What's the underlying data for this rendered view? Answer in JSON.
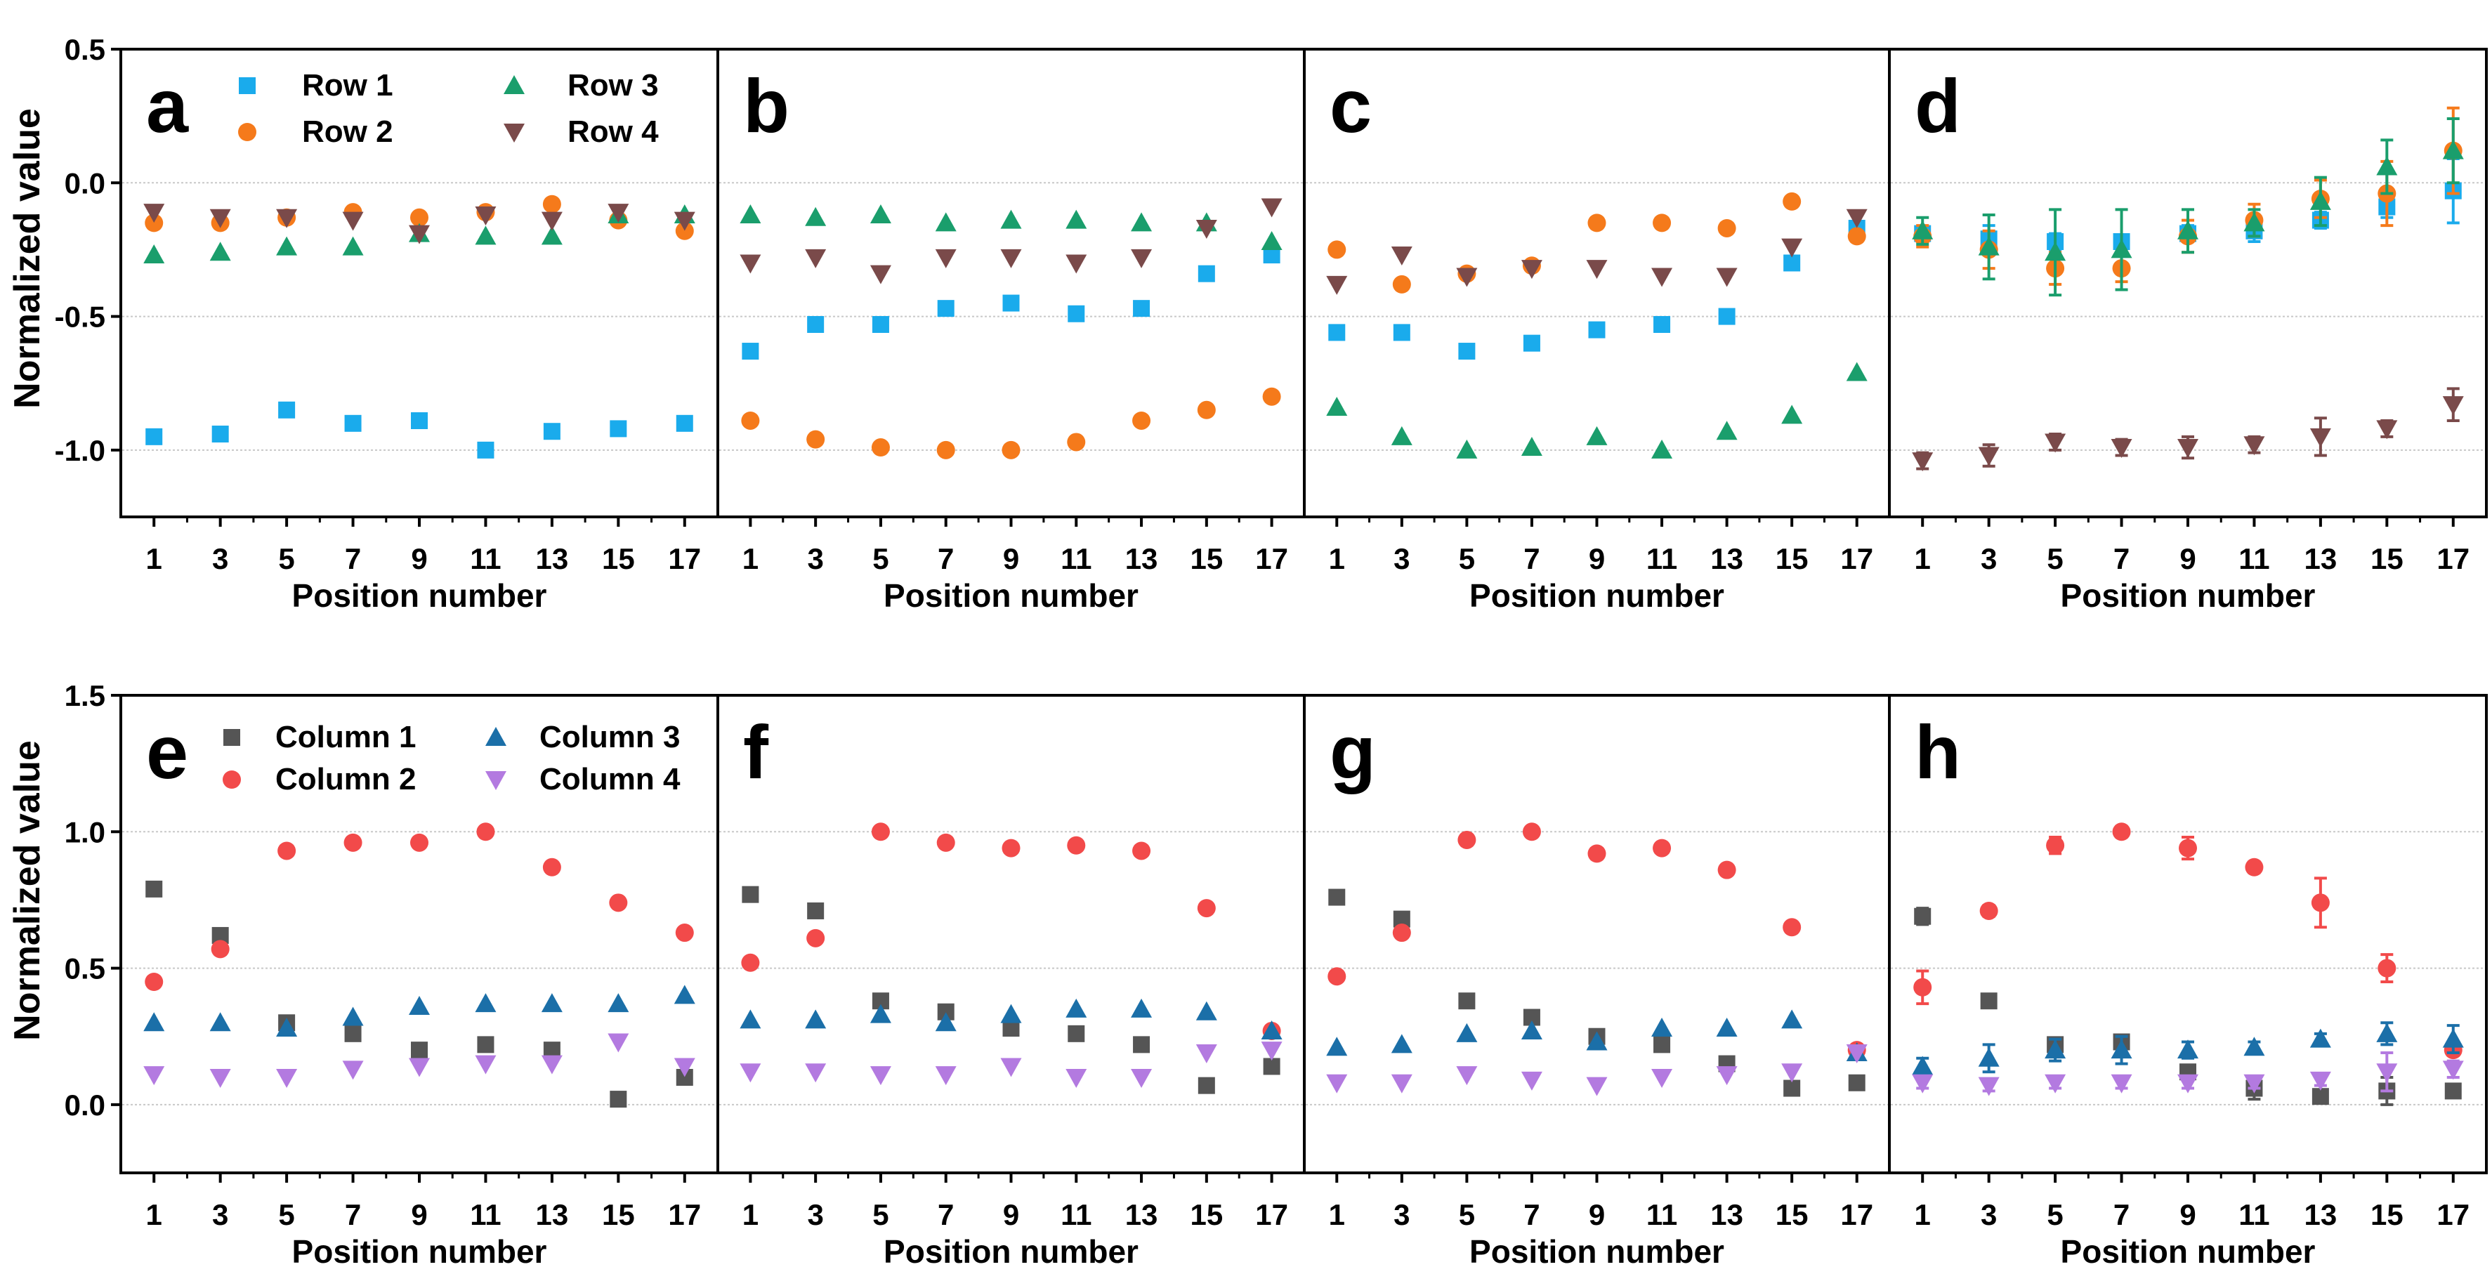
{
  "figure": {
    "rows": [
      {
        "ylabel": "Normalized value",
        "ylim": [
          -1.25,
          0.5
        ],
        "yticks": [
          -1.0,
          -0.5,
          0.0,
          0.5
        ],
        "ytick_labels": [
          "-1.0",
          "-0.5",
          "0.0",
          "0.5"
        ],
        "gridlines": [
          -1.0,
          -0.5,
          0.0
        ],
        "legend": [
          {
            "name": "Row 1",
            "color": "#1aabec",
            "marker": "square"
          },
          {
            "name": "Row 2",
            "color": "#f57a1b",
            "marker": "circle"
          },
          {
            "name": "Row 3",
            "color": "#1a9e6c",
            "marker": "triangle-up"
          },
          {
            "name": "Row 4",
            "color": "#7a4a4a",
            "marker": "triangle-down"
          }
        ]
      },
      {
        "ylabel": "Normalized value",
        "ylim": [
          -0.25,
          1.5
        ],
        "yticks": [
          0.0,
          0.5,
          1.0,
          1.5
        ],
        "ytick_labels": [
          "0.0",
          "0.5",
          "1.0",
          "1.5"
        ],
        "gridlines": [
          0.0,
          0.5,
          1.0
        ],
        "legend": [
          {
            "name": "Column 1",
            "color": "#555555",
            "marker": "square"
          },
          {
            "name": "Column 2",
            "color": "#f24a4a",
            "marker": "circle"
          },
          {
            "name": "Column 3",
            "color": "#1b6fa8",
            "marker": "triangle-up"
          },
          {
            "name": "Column 4",
            "color": "#b37ae0",
            "marker": "triangle-down"
          }
        ]
      }
    ],
    "xticks": [
      1,
      3,
      5,
      7,
      9,
      11,
      13,
      15,
      17
    ],
    "xtick_labels": [
      "1",
      "3",
      "5",
      "7",
      "9",
      "11",
      "13",
      "15",
      "17"
    ],
    "xlabel": "Position number"
  },
  "chart_data": [
    {
      "panel": "a",
      "type": "scatter",
      "xlabel": "Position number",
      "ylabel": "Normalized value",
      "ylim": [
        -1.25,
        0.5
      ],
      "legend_position": "top",
      "x": [
        1,
        3,
        5,
        7,
        9,
        11,
        13,
        15,
        17
      ],
      "series": [
        {
          "name": "Row 1",
          "values": [
            -0.95,
            -0.94,
            -0.85,
            -0.9,
            -0.89,
            -1.0,
            -0.93,
            -0.92,
            -0.9
          ]
        },
        {
          "name": "Row 2",
          "values": [
            -0.15,
            -0.15,
            -0.13,
            -0.11,
            -0.13,
            -0.11,
            -0.08,
            -0.14,
            -0.18
          ]
        },
        {
          "name": "Row 3",
          "values": [
            -0.27,
            -0.26,
            -0.24,
            -0.24,
            -0.19,
            -0.2,
            -0.2,
            -0.12,
            -0.12
          ]
        },
        {
          "name": "Row 4",
          "values": [
            -0.11,
            -0.13,
            -0.13,
            -0.14,
            -0.19,
            -0.12,
            -0.14,
            -0.11,
            -0.14
          ]
        }
      ]
    },
    {
      "panel": "b",
      "type": "scatter",
      "xlabel": "Position number",
      "ylim": [
        -1.25,
        0.5
      ],
      "x": [
        1,
        3,
        5,
        7,
        9,
        11,
        13,
        15,
        17
      ],
      "series": [
        {
          "name": "Row 1",
          "values": [
            -0.63,
            -0.53,
            -0.53,
            -0.47,
            -0.45,
            -0.49,
            -0.47,
            -0.34,
            -0.27
          ]
        },
        {
          "name": "Row 2",
          "values": [
            -0.89,
            -0.96,
            -0.99,
            -1.0,
            -1.0,
            -0.97,
            -0.89,
            -0.85,
            -0.8
          ]
        },
        {
          "name": "Row 3",
          "values": [
            -0.12,
            -0.13,
            -0.12,
            -0.15,
            -0.14,
            -0.14,
            -0.15,
            -0.15,
            -0.22
          ]
        },
        {
          "name": "Row 4",
          "values": [
            -0.3,
            -0.28,
            -0.34,
            -0.28,
            -0.28,
            -0.3,
            -0.28,
            -0.17,
            -0.09
          ]
        }
      ]
    },
    {
      "panel": "c",
      "type": "scatter",
      "xlabel": "Position number",
      "ylim": [
        -1.25,
        0.5
      ],
      "x": [
        1,
        3,
        5,
        7,
        9,
        11,
        13,
        15,
        17
      ],
      "series": [
        {
          "name": "Row 1",
          "values": [
            -0.56,
            -0.56,
            -0.63,
            -0.6,
            -0.55,
            -0.53,
            -0.5,
            -0.3,
            -0.17
          ]
        },
        {
          "name": "Row 2",
          "values": [
            -0.25,
            -0.38,
            -0.34,
            -0.31,
            -0.15,
            -0.15,
            -0.17,
            -0.07,
            -0.2
          ]
        },
        {
          "name": "Row 3",
          "values": [
            -0.84,
            -0.95,
            -1.0,
            -0.99,
            -0.95,
            -1.0,
            -0.93,
            -0.87,
            -0.71
          ]
        },
        {
          "name": "Row 4",
          "values": [
            -0.38,
            -0.27,
            -0.35,
            -0.32,
            -0.32,
            -0.35,
            -0.35,
            -0.24,
            -0.13
          ]
        }
      ]
    },
    {
      "panel": "d",
      "type": "scatter",
      "xlabel": "Position number",
      "ylim": [
        -1.25,
        0.5
      ],
      "x": [
        1,
        3,
        5,
        7,
        9,
        11,
        13,
        15,
        17
      ],
      "series": [
        {
          "name": "Row 1",
          "values": [
            -0.19,
            -0.21,
            -0.22,
            -0.22,
            -0.19,
            -0.18,
            -0.14,
            -0.09,
            -0.03
          ],
          "errors": [
            0.02,
            0.05,
            0.03,
            0.02,
            0.03,
            0.04,
            0.03,
            0.04,
            0.12
          ]
        },
        {
          "name": "Row 2",
          "values": [
            -0.2,
            -0.25,
            -0.32,
            -0.32,
            -0.2,
            -0.14,
            -0.06,
            -0.04,
            0.12
          ],
          "errors": [
            0.04,
            0.07,
            0.06,
            0.05,
            0.06,
            0.06,
            0.07,
            0.12,
            0.16
          ]
        },
        {
          "name": "Row 3",
          "values": [
            -0.18,
            -0.24,
            -0.26,
            -0.25,
            -0.18,
            -0.15,
            -0.07,
            0.06,
            0.12
          ],
          "errors": [
            0.05,
            0.12,
            0.16,
            0.15,
            0.08,
            0.05,
            0.09,
            0.1,
            0.12
          ]
        },
        {
          "name": "Row 4",
          "values": [
            -1.04,
            -1.02,
            -0.97,
            -0.99,
            -0.99,
            -0.98,
            -0.95,
            -0.92,
            -0.83
          ],
          "errors": [
            0.03,
            0.04,
            0.03,
            0.03,
            0.04,
            0.03,
            0.07,
            0.03,
            0.06
          ]
        }
      ]
    },
    {
      "panel": "e",
      "type": "scatter",
      "xlabel": "Position number",
      "ylabel": "Normalized value",
      "ylim": [
        -0.25,
        1.5
      ],
      "legend_position": "top",
      "x": [
        1,
        3,
        5,
        7,
        9,
        11,
        13,
        15,
        17
      ],
      "series": [
        {
          "name": "Column 1",
          "values": [
            0.79,
            0.62,
            0.3,
            0.26,
            0.2,
            0.22,
            0.2,
            0.02,
            0.1
          ]
        },
        {
          "name": "Column 2",
          "values": [
            0.45,
            0.57,
            0.93,
            0.96,
            0.96,
            1.0,
            0.87,
            0.74,
            0.63
          ]
        },
        {
          "name": "Column 3",
          "values": [
            0.3,
            0.3,
            0.28,
            0.32,
            0.36,
            0.37,
            0.37,
            0.37,
            0.4
          ]
        },
        {
          "name": "Column 4",
          "values": [
            0.11,
            0.1,
            0.1,
            0.13,
            0.14,
            0.15,
            0.15,
            0.23,
            0.14
          ]
        }
      ]
    },
    {
      "panel": "f",
      "type": "scatter",
      "xlabel": "Position number",
      "ylim": [
        -0.25,
        1.5
      ],
      "x": [
        1,
        3,
        5,
        7,
        9,
        11,
        13,
        15,
        17
      ],
      "series": [
        {
          "name": "Column 1",
          "values": [
            0.77,
            0.71,
            0.38,
            0.34,
            0.28,
            0.26,
            0.22,
            0.07,
            0.14
          ]
        },
        {
          "name": "Column 2",
          "values": [
            0.52,
            0.61,
            1.0,
            0.96,
            0.94,
            0.95,
            0.93,
            0.72,
            0.27
          ]
        },
        {
          "name": "Column 3",
          "values": [
            0.31,
            0.31,
            0.33,
            0.3,
            0.33,
            0.35,
            0.35,
            0.34,
            0.27
          ]
        },
        {
          "name": "Column 4",
          "values": [
            0.12,
            0.12,
            0.11,
            0.11,
            0.14,
            0.1,
            0.1,
            0.19,
            0.2
          ]
        }
      ]
    },
    {
      "panel": "g",
      "type": "scatter",
      "xlabel": "Position number",
      "ylim": [
        -0.25,
        1.5
      ],
      "x": [
        1,
        3,
        5,
        7,
        9,
        11,
        13,
        15,
        17
      ],
      "series": [
        {
          "name": "Column 1",
          "values": [
            0.76,
            0.68,
            0.38,
            0.32,
            0.25,
            0.22,
            0.15,
            0.06,
            0.08
          ]
        },
        {
          "name": "Column 2",
          "values": [
            0.47,
            0.63,
            0.97,
            1.0,
            0.92,
            0.94,
            0.86,
            0.65,
            0.2
          ]
        },
        {
          "name": "Column 3",
          "values": [
            0.21,
            0.22,
            0.26,
            0.27,
            0.23,
            0.28,
            0.28,
            0.31,
            0.19
          ]
        },
        {
          "name": "Column 4",
          "values": [
            0.08,
            0.08,
            0.11,
            0.09,
            0.07,
            0.1,
            0.11,
            0.12,
            0.19
          ]
        }
      ]
    },
    {
      "panel": "h",
      "type": "scatter",
      "xlabel": "Position number",
      "ylim": [
        -0.25,
        1.5
      ],
      "x": [
        1,
        3,
        5,
        7,
        9,
        11,
        13,
        15,
        17
      ],
      "series": [
        {
          "name": "Column 1",
          "values": [
            0.69,
            0.38,
            0.22,
            0.23,
            0.12,
            0.06,
            0.03,
            0.05,
            0.05
          ],
          "errors": [
            0.03,
            0.02,
            0.02,
            0.02,
            0.02,
            0.04,
            0.02,
            0.05,
            0.02
          ]
        },
        {
          "name": "Column 2",
          "values": [
            0.43,
            0.71,
            0.95,
            1.0,
            0.94,
            0.87,
            0.74,
            0.5,
            0.2
          ],
          "errors": [
            0.06,
            0.02,
            0.03,
            0.02,
            0.04,
            0.02,
            0.09,
            0.05,
            0.02
          ]
        },
        {
          "name": "Column 3",
          "values": [
            0.14,
            0.17,
            0.2,
            0.2,
            0.2,
            0.21,
            0.24,
            0.26,
            0.24
          ],
          "errors": [
            0.03,
            0.05,
            0.04,
            0.05,
            0.03,
            0.02,
            0.02,
            0.04,
            0.05
          ]
        },
        {
          "name": "Column 4",
          "values": [
            0.08,
            0.07,
            0.08,
            0.08,
            0.08,
            0.08,
            0.09,
            0.12,
            0.13
          ],
          "errors": [
            0.02,
            0.02,
            0.02,
            0.02,
            0.02,
            0.02,
            0.02,
            0.07,
            0.03
          ]
        }
      ]
    }
  ]
}
